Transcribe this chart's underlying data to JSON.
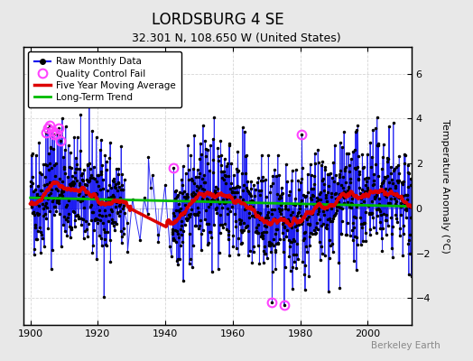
{
  "title": "LORDSBURG 4 SE",
  "subtitle": "32.301 N, 108.650 W (United States)",
  "ylabel": "Temperature Anomaly (°C)",
  "credit": "Berkeley Earth",
  "xlim": [
    1898,
    2013
  ],
  "ylim": [
    -5.2,
    7.2
  ],
  "yticks": [
    -4,
    -2,
    0,
    2,
    4,
    6
  ],
  "xticks": [
    1900,
    1920,
    1940,
    1960,
    1980,
    2000
  ],
  "seed": 42,
  "n_years": 113,
  "start_year": 1900,
  "raw_color": "#0000ee",
  "raw_stem_color": "#6666ff",
  "qc_color": "#ff44ff",
  "moving_avg_color": "#dd0000",
  "trend_color": "#00bb00",
  "bg_color": "#e8e8e8",
  "plot_bg_color": "#ffffff",
  "grid_color": "#cccccc"
}
